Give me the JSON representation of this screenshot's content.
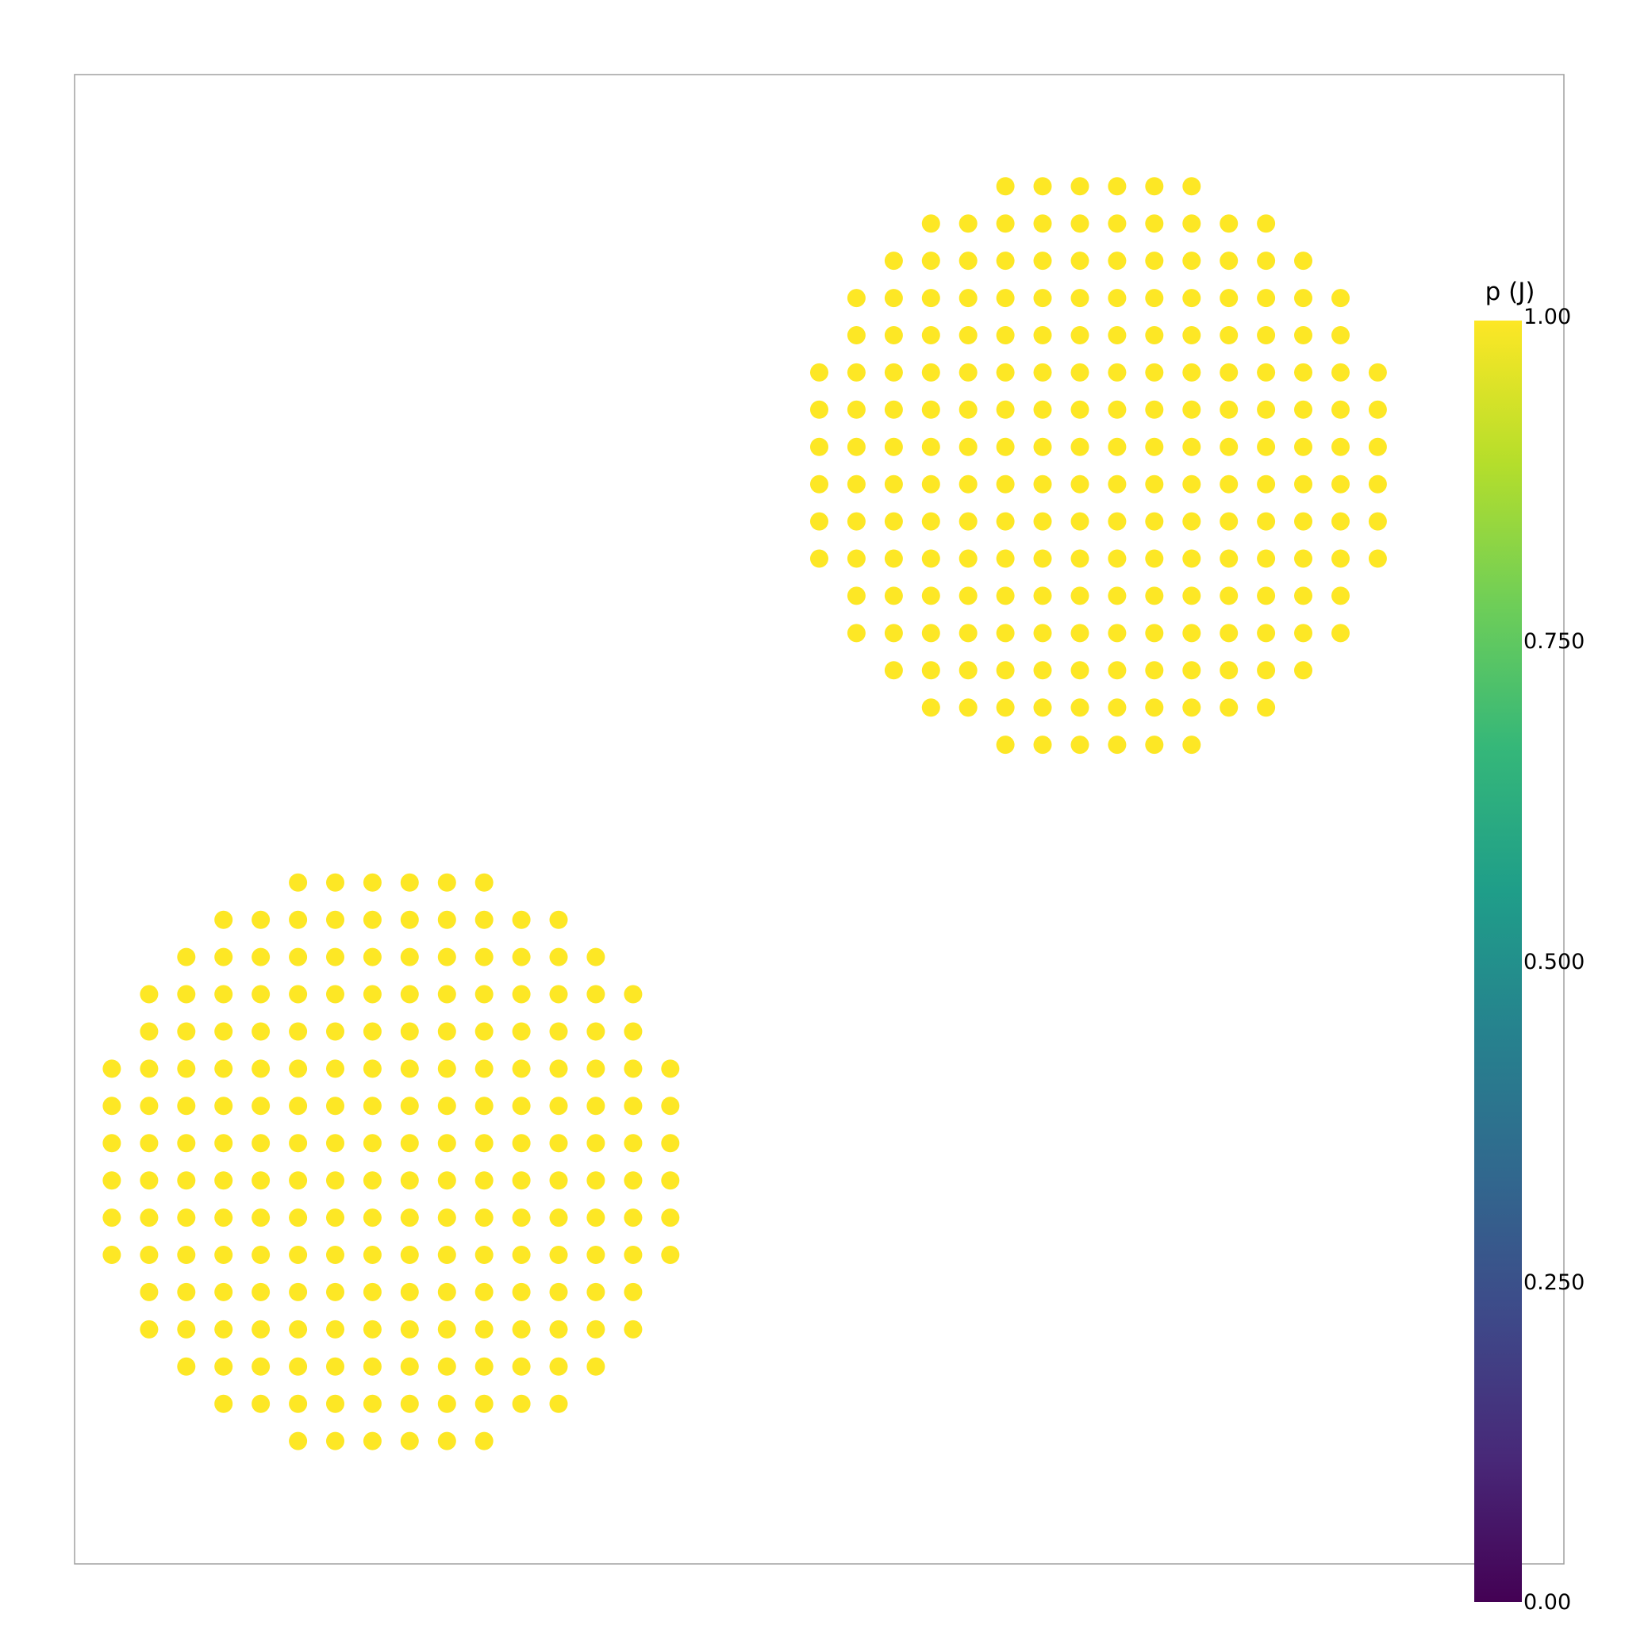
{
  "chart_data": {
    "type": "scatter",
    "title": "",
    "xlabel": "",
    "ylabel": "",
    "xlim": [
      0,
      40
    ],
    "ylim": [
      0,
      40
    ],
    "grid": false,
    "particle_spacing": 1,
    "marker_color": "#fde725",
    "frame_color": "#a0a0a0",
    "clusters": [
      {
        "name": "upper-right cluster",
        "x_start": 22,
        "y_top": 37,
        "row_spans": [
          [
            3,
            8
          ],
          [
            1,
            10
          ],
          [
            0,
            11
          ],
          [
            -1,
            12
          ],
          [
            -1,
            12
          ],
          [
            -2,
            13
          ],
          [
            -2,
            13
          ],
          [
            -2,
            13
          ],
          [
            -2,
            13
          ],
          [
            -2,
            13
          ],
          [
            -2,
            13
          ],
          [
            -1,
            12
          ],
          [
            -1,
            12
          ],
          [
            0,
            11
          ],
          [
            1,
            10
          ],
          [
            3,
            8
          ]
        ],
        "value": 1.0
      },
      {
        "name": "lower-left cluster",
        "x_start": 3,
        "y_top": 18.3,
        "row_spans": [
          [
            3,
            8
          ],
          [
            1,
            10
          ],
          [
            0,
            11
          ],
          [
            -1,
            12
          ],
          [
            -1,
            12
          ],
          [
            -2,
            13
          ],
          [
            -2,
            13
          ],
          [
            -2,
            13
          ],
          [
            -2,
            13
          ],
          [
            -2,
            13
          ],
          [
            -2,
            13
          ],
          [
            -1,
            12
          ],
          [
            -1,
            12
          ],
          [
            0,
            11
          ],
          [
            1,
            10
          ],
          [
            3,
            8
          ]
        ],
        "value": 1.0
      }
    ],
    "colorbar": {
      "title": "p (J)",
      "min": 0.0,
      "max": 1.0,
      "colormap": "viridis",
      "colormap_stops": [
        "#440154",
        "#482878",
        "#3e4989",
        "#31688e",
        "#26828e",
        "#1f9e89",
        "#35b779",
        "#6ece58",
        "#b5de2b",
        "#fde725"
      ],
      "ticks": [
        {
          "value": 0.0,
          "label": "0.00"
        },
        {
          "value": 0.25,
          "label": "0.250"
        },
        {
          "value": 0.5,
          "label": "0.500"
        },
        {
          "value": 0.75,
          "label": "0.750"
        },
        {
          "value": 1.0,
          "label": "1.00"
        }
      ]
    }
  }
}
